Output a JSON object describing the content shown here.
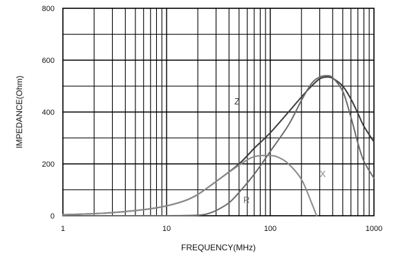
{
  "chart_data": {
    "type": "line",
    "xlabel": "FREQUENCY(MHz)",
    "ylabel": "IMPEDANCE(Ohm)",
    "xscale": "log",
    "xlim": [
      1,
      1000
    ],
    "ylim": [
      0,
      800
    ],
    "xticks": [
      1,
      10,
      100,
      1000
    ],
    "xtick_labels": [
      "1",
      "10",
      "100",
      "1000"
    ],
    "yticks": [
      0,
      200,
      400,
      600,
      800
    ],
    "ytick_labels": [
      "0",
      "200",
      "400",
      "600",
      "800"
    ],
    "grid": true,
    "legend": "none",
    "series": [
      {
        "name": "Z",
        "color": "#3a3a3a",
        "x": [
          1,
          2,
          3,
          5,
          7,
          10,
          15,
          20,
          30,
          50,
          70,
          100,
          150,
          200,
          250,
          300,
          350,
          400,
          500,
          600,
          700,
          800,
          1000
        ],
        "y": [
          4,
          8,
          12,
          20,
          27,
          38,
          58,
          82,
          132,
          200,
          260,
          320,
          400,
          458,
          500,
          528,
          535,
          530,
          500,
          450,
          395,
          345,
          285
        ]
      },
      {
        "name": "R",
        "color": "#6b6b6b",
        "x": [
          1,
          5,
          10,
          20,
          25,
          30,
          40,
          50,
          70,
          100,
          150,
          200,
          250,
          300,
          350,
          400,
          500,
          600,
          700,
          800,
          1000
        ],
        "y": [
          0,
          0,
          0,
          2,
          8,
          20,
          50,
          90,
          160,
          248,
          350,
          445,
          510,
          535,
          540,
          532,
          480,
          380,
          280,
          210,
          145
        ]
      },
      {
        "name": "X",
        "color": "#8a8a8a",
        "x": [
          1,
          2,
          3,
          5,
          7,
          10,
          15,
          20,
          30,
          50,
          70,
          100,
          120,
          150,
          200,
          250,
          280
        ],
        "y": [
          4,
          8,
          12,
          20,
          27,
          38,
          58,
          82,
          132,
          195,
          228,
          232,
          225,
          200,
          140,
          50,
          0
        ]
      }
    ]
  }
}
